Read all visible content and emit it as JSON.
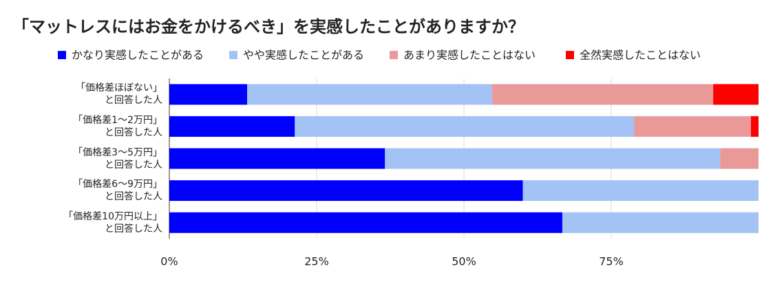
{
  "chart_data": {
    "type": "stacked_percent_bar",
    "title": "「マットレスにはお金をかけるべき」を実感したことがありますか？",
    "categories": [
      "「価格差ほぼない」\nと回答した人",
      "「価格差1〜2万円」\nと回答した人",
      "「価格差3〜5万円」\nと回答した人",
      "「価格差6〜9万円」\nと回答した人",
      "「価格差10万円以上」\nと回答した人"
    ],
    "series": [
      {
        "name": "かなり実感したことがある",
        "color": "#0000ff",
        "values": [
          13.2,
          21.3,
          36.6,
          60.0,
          66.7
        ]
      },
      {
        "name": "やや実感したことがある",
        "color": "#a4c2f4",
        "values": [
          41.6,
          57.6,
          56.9,
          40.0,
          33.3
        ]
      },
      {
        "name": "あまり実感したことはない",
        "color": "#ea9999",
        "values": [
          37.5,
          19.8,
          6.5,
          0,
          0
        ]
      },
      {
        "name": "全然実感したことはない",
        "color": "#ff0000",
        "values": [
          7.7,
          1.3,
          0,
          0,
          0
        ]
      }
    ],
    "xlim": [
      0,
      100
    ],
    "xticks": [
      {
        "value": 0,
        "label": "0%"
      },
      {
        "value": 25,
        "label": "25%"
      },
      {
        "value": 50,
        "label": "50%"
      },
      {
        "value": 75,
        "label": "75%"
      }
    ],
    "grid": true
  }
}
